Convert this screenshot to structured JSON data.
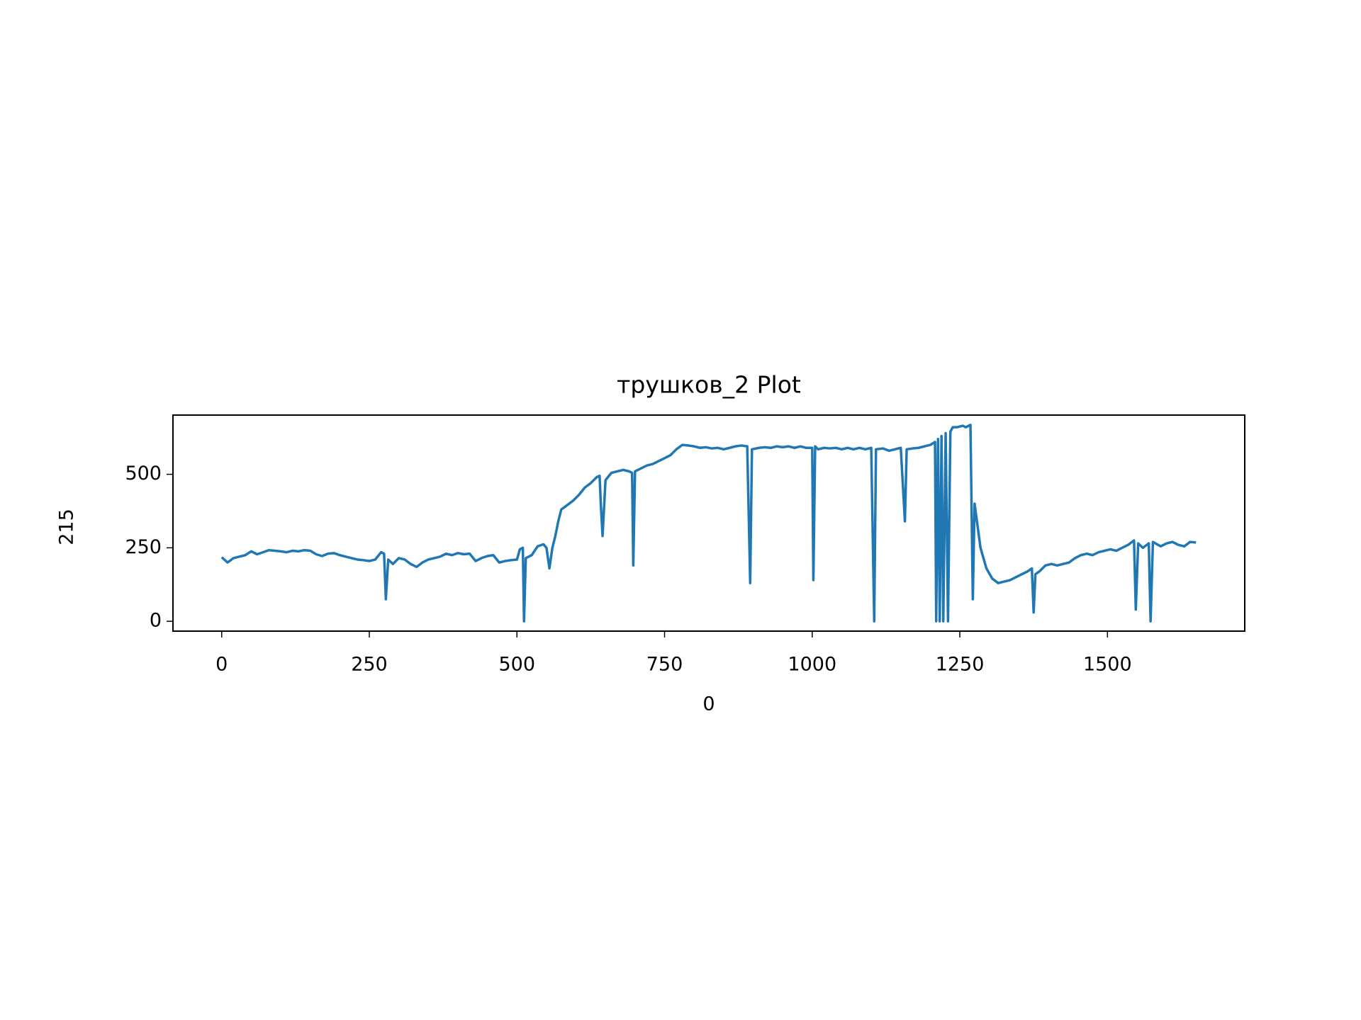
{
  "chart_data": {
    "type": "line",
    "title": "трушков_2 Plot",
    "xlabel": "0",
    "ylabel": "215",
    "xlim": [
      -82.5,
      1732.5
    ],
    "ylim": [
      -33.4,
      701.4
    ],
    "xticks": [
      0,
      250,
      500,
      750,
      1000,
      1250,
      1500
    ],
    "yticks": [
      0,
      250,
      500
    ],
    "x": [
      0,
      10,
      20,
      30,
      40,
      50,
      60,
      70,
      80,
      90,
      100,
      110,
      120,
      130,
      140,
      150,
      160,
      170,
      180,
      190,
      200,
      210,
      220,
      230,
      240,
      250,
      260,
      270,
      275,
      278,
      282,
      290,
      300,
      310,
      320,
      330,
      340,
      350,
      360,
      370,
      380,
      390,
      400,
      410,
      420,
      430,
      440,
      450,
      460,
      470,
      480,
      490,
      500,
      505,
      510,
      512,
      515,
      525,
      535,
      545,
      550,
      555,
      560,
      565,
      570,
      575,
      585,
      595,
      605,
      615,
      625,
      635,
      640,
      642,
      645,
      650,
      660,
      670,
      680,
      690,
      695,
      697,
      700,
      710,
      720,
      730,
      740,
      750,
      760,
      770,
      780,
      790,
      800,
      810,
      820,
      830,
      840,
      850,
      860,
      870,
      880,
      890,
      895,
      898,
      910,
      920,
      930,
      940,
      950,
      960,
      970,
      980,
      990,
      1000,
      1002,
      1005,
      1010,
      1020,
      1030,
      1040,
      1050,
      1060,
      1070,
      1080,
      1090,
      1100,
      1105,
      1108,
      1120,
      1130,
      1140,
      1150,
      1157,
      1160,
      1170,
      1180,
      1190,
      1200,
      1208,
      1210,
      1213,
      1216,
      1219,
      1222,
      1226,
      1230,
      1234,
      1238,
      1245,
      1255,
      1260,
      1268,
      1272,
      1275,
      1285,
      1295,
      1305,
      1315,
      1325,
      1335,
      1345,
      1355,
      1365,
      1372,
      1375,
      1378,
      1385,
      1395,
      1405,
      1415,
      1425,
      1435,
      1445,
      1455,
      1465,
      1475,
      1485,
      1495,
      1505,
      1515,
      1525,
      1535,
      1545,
      1548,
      1552,
      1560,
      1570,
      1573,
      1577,
      1590,
      1600,
      1610,
      1620,
      1630,
      1640,
      1650
    ],
    "series": [
      {
        "color": "#1f77b4",
        "values": [
          218,
          200,
          215,
          220,
          225,
          238,
          228,
          235,
          242,
          240,
          238,
          235,
          240,
          238,
          242,
          240,
          228,
          222,
          230,
          232,
          225,
          220,
          215,
          210,
          208,
          205,
          210,
          235,
          230,
          75,
          210,
          195,
          215,
          210,
          195,
          185,
          200,
          210,
          215,
          220,
          230,
          225,
          232,
          228,
          230,
          205,
          215,
          222,
          225,
          200,
          205,
          208,
          210,
          245,
          250,
          0,
          215,
          225,
          255,
          262,
          250,
          180,
          250,
          290,
          340,
          380,
          395,
          410,
          430,
          455,
          470,
          490,
          495,
          400,
          290,
          480,
          505,
          510,
          515,
          510,
          505,
          190,
          510,
          520,
          530,
          535,
          545,
          555,
          565,
          585,
          600,
          598,
          595,
          590,
          592,
          588,
          590,
          585,
          590,
          595,
          598,
          595,
          130,
          585,
          590,
          592,
          590,
          595,
          592,
          595,
          590,
          595,
          590,
          590,
          140,
          595,
          585,
          590,
          588,
          590,
          585,
          590,
          585,
          590,
          585,
          590,
          0,
          585,
          588,
          580,
          585,
          590,
          340,
          585,
          588,
          590,
          595,
          600,
          610,
          0,
          620,
          0,
          630,
          0,
          640,
          0,
          645,
          660,
          660,
          665,
          660,
          668,
          75,
          400,
          250,
          180,
          145,
          130,
          135,
          140,
          150,
          160,
          170,
          180,
          30,
          160,
          170,
          190,
          195,
          190,
          195,
          200,
          215,
          225,
          230,
          225,
          235,
          240,
          245,
          240,
          250,
          260,
          275,
          40,
          265,
          250,
          265,
          0,
          270,
          255,
          265,
          270,
          260,
          255,
          270,
          268
        ]
      }
    ]
  }
}
